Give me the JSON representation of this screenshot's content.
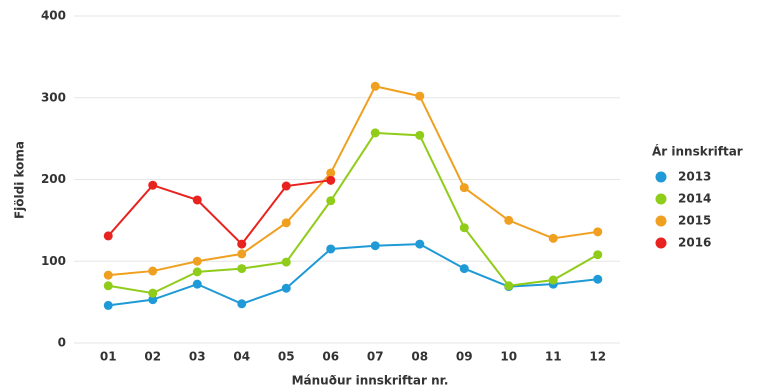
{
  "chart_data": {
    "type": "line",
    "x_label": "Mánuður innskriftar nr.",
    "y_label": "Fjöldi koma",
    "legend_title": "Ár innskriftar",
    "categories": [
      "01",
      "02",
      "03",
      "04",
      "05",
      "06",
      "07",
      "08",
      "09",
      "10",
      "11",
      "12"
    ],
    "series": [
      {
        "name": "2013",
        "color": "#1f9ad6",
        "values": [
          46,
          53,
          72,
          48,
          67,
          115,
          119,
          121,
          91,
          69,
          72,
          78
        ]
      },
      {
        "name": "2014",
        "color": "#90cc1a",
        "values": [
          70,
          61,
          87,
          91,
          99,
          174,
          257,
          254,
          141,
          70,
          77,
          108
        ]
      },
      {
        "name": "2015",
        "color": "#f0a020",
        "values": [
          83,
          88,
          100,
          109,
          147,
          208,
          314,
          302,
          190,
          150,
          128,
          136
        ]
      },
      {
        "name": "2016",
        "color": "#e8231f",
        "values": [
          131,
          193,
          175,
          121,
          192,
          199,
          null,
          null,
          null,
          null,
          null,
          null
        ]
      }
    ],
    "ylim": [
      0,
      400
    ],
    "yticks": [
      0,
      100,
      200,
      300,
      400
    ],
    "grid": true,
    "legend": "right"
  }
}
